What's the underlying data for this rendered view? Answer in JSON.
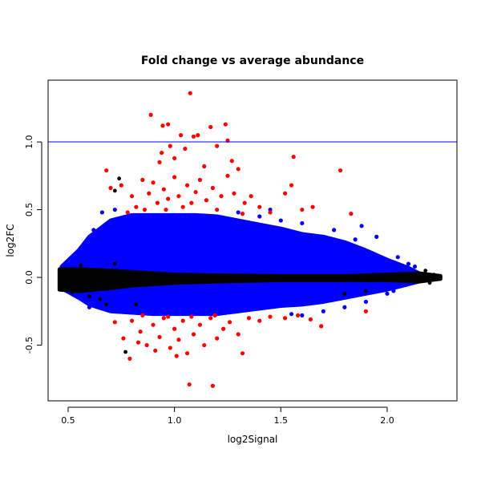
{
  "chart_data": {
    "type": "scatter",
    "title": "Fold change vs average abundance",
    "xlabel": "log2Signal",
    "ylabel": "log2FC",
    "xlim": [
      0.406,
      2.328
    ],
    "ylim": [
      -0.911,
      1.456
    ],
    "xticks": [
      0.5,
      1.0,
      1.5,
      2.0
    ],
    "xtick_labels": [
      "0.5",
      "1.0",
      "1.5",
      "2.0"
    ],
    "yticks": [
      -0.5,
      0.0,
      0.5,
      1.0
    ],
    "ytick_labels": [
      "-0.5",
      "0.0",
      "0.5",
      "1.0"
    ],
    "grid": false,
    "hline": {
      "y": 1.0,
      "color": "#0000ff"
    },
    "colors": {
      "significant": "#ff0000",
      "moderate": "#0000ff",
      "unchanged": "#000000"
    },
    "blue_envelope": [
      [
        0.47,
        0.08,
        -0.08
      ],
      [
        0.55,
        0.2,
        -0.15
      ],
      [
        0.6,
        0.3,
        -0.2
      ],
      [
        0.7,
        0.42,
        -0.25
      ],
      [
        0.8,
        0.46,
        -0.26
      ],
      [
        0.9,
        0.46,
        -0.27
      ],
      [
        1.0,
        0.46,
        -0.27
      ],
      [
        1.1,
        0.46,
        -0.27
      ],
      [
        1.2,
        0.45,
        -0.27
      ],
      [
        1.3,
        0.42,
        -0.25
      ],
      [
        1.4,
        0.39,
        -0.23
      ],
      [
        1.5,
        0.36,
        -0.21
      ],
      [
        1.6,
        0.32,
        -0.2
      ],
      [
        1.7,
        0.3,
        -0.18
      ],
      [
        1.8,
        0.26,
        -0.15
      ],
      [
        1.9,
        0.2,
        -0.12
      ],
      [
        2.0,
        0.13,
        -0.09
      ],
      [
        2.1,
        0.07,
        -0.05
      ],
      [
        2.15,
        0.03,
        -0.03
      ]
    ],
    "black_envelope": [
      [
        0.46,
        0.06,
        -0.09
      ],
      [
        0.55,
        0.06,
        -0.1
      ],
      [
        0.7,
        0.05,
        -0.08
      ],
      [
        0.8,
        0.04,
        -0.06
      ],
      [
        0.9,
        0.03,
        -0.05
      ],
      [
        1.0,
        0.02,
        -0.04
      ],
      [
        1.2,
        0.015,
        -0.03
      ],
      [
        1.5,
        0.01,
        -0.02
      ],
      [
        1.8,
        0.01,
        -0.02
      ],
      [
        2.0,
        0.02,
        -0.02
      ],
      [
        2.15,
        0.03,
        -0.03
      ],
      [
        2.25,
        0.01,
        -0.01
      ]
    ],
    "blue_points": [
      [
        0.62,
        0.35
      ],
      [
        0.66,
        0.48
      ],
      [
        0.72,
        0.5
      ],
      [
        1.4,
        0.45
      ],
      [
        1.45,
        0.5
      ],
      [
        1.5,
        0.42
      ],
      [
        1.6,
        0.4
      ],
      [
        1.75,
        0.35
      ],
      [
        1.88,
        0.38
      ],
      [
        1.95,
        0.3
      ],
      [
        2.05,
        0.15
      ],
      [
        2.1,
        0.1
      ],
      [
        2.13,
        0.08
      ],
      [
        1.9,
        -0.18
      ],
      [
        1.8,
        -0.22
      ],
      [
        1.7,
        -0.25
      ],
      [
        1.6,
        -0.28
      ],
      [
        2.0,
        -0.12
      ],
      [
        0.6,
        -0.22
      ],
      [
        0.58,
        0.25
      ],
      [
        1.3,
        0.48
      ],
      [
        1.55,
        -0.27
      ],
      [
        1.85,
        0.28
      ],
      [
        2.03,
        -0.1
      ]
    ],
    "black_points": [
      [
        0.47,
        -0.03
      ],
      [
        0.49,
        0.05
      ],
      [
        0.52,
        -0.11
      ],
      [
        0.56,
        0.09
      ],
      [
        0.6,
        -0.14
      ],
      [
        0.65,
        -0.16
      ],
      [
        0.68,
        -0.2
      ],
      [
        0.72,
        0.1
      ],
      [
        0.74,
        0.73
      ],
      [
        0.72,
        0.64
      ],
      [
        0.77,
        -0.55
      ],
      [
        0.82,
        -0.2
      ],
      [
        2.18,
        0.05
      ],
      [
        2.2,
        -0.04
      ],
      [
        2.22,
        0.02
      ],
      [
        2.25,
        0.0
      ],
      [
        1.8,
        -0.12
      ],
      [
        1.9,
        -0.1
      ]
    ],
    "red_points": [
      [
        1.074,
        1.36
      ],
      [
        0.889,
        1.2
      ],
      [
        0.945,
        1.12
      ],
      [
        0.97,
        1.13
      ],
      [
        1.03,
        1.05
      ],
      [
        1.17,
        1.11
      ],
      [
        1.24,
        1.13
      ],
      [
        1.25,
        1.01
      ],
      [
        1.11,
        1.05
      ],
      [
        1.09,
        1.04
      ],
      [
        0.94,
        0.92
      ],
      [
        0.98,
        0.97
      ],
      [
        1.05,
        0.95
      ],
      [
        1.2,
        0.97
      ],
      [
        0.93,
        0.85
      ],
      [
        1.0,
        0.88
      ],
      [
        1.14,
        0.82
      ],
      [
        1.27,
        0.86
      ],
      [
        0.68,
        0.79
      ],
      [
        1.56,
        0.89
      ],
      [
        1.78,
        0.79
      ],
      [
        0.75,
        0.68
      ],
      [
        0.7,
        0.66
      ],
      [
        0.8,
        0.6
      ],
      [
        0.85,
        0.72
      ],
      [
        0.88,
        0.62
      ],
      [
        0.9,
        0.7
      ],
      [
        0.92,
        0.55
      ],
      [
        0.95,
        0.65
      ],
      [
        0.97,
        0.58
      ],
      [
        1.0,
        0.74
      ],
      [
        1.02,
        0.6
      ],
      [
        1.06,
        0.68
      ],
      [
        1.08,
        0.55
      ],
      [
        1.1,
        0.63
      ],
      [
        1.12,
        0.72
      ],
      [
        1.15,
        0.57
      ],
      [
        1.18,
        0.66
      ],
      [
        1.22,
        0.6
      ],
      [
        1.25,
        0.75
      ],
      [
        1.28,
        0.62
      ],
      [
        1.3,
        0.8
      ],
      [
        1.33,
        0.55
      ],
      [
        1.36,
        0.6
      ],
      [
        1.4,
        0.52
      ],
      [
        1.45,
        0.48
      ],
      [
        1.52,
        0.62
      ],
      [
        1.55,
        0.68
      ],
      [
        1.6,
        0.5
      ],
      [
        1.65,
        0.52
      ],
      [
        1.83,
        0.47
      ],
      [
        0.82,
        0.52
      ],
      [
        0.86,
        0.5
      ],
      [
        0.96,
        0.5
      ],
      [
        1.04,
        0.52
      ],
      [
        1.2,
        0.5
      ],
      [
        0.78,
        0.48
      ],
      [
        1.32,
        0.47
      ],
      [
        1.07,
        -0.79
      ],
      [
        1.18,
        -0.8
      ],
      [
        0.79,
        -0.6
      ],
      [
        0.91,
        -0.54
      ],
      [
        1.32,
        -0.56
      ],
      [
        1.69,
        -0.36
      ],
      [
        1.9,
        -0.25
      ],
      [
        0.72,
        -0.33
      ],
      [
        0.76,
        -0.45
      ],
      [
        0.8,
        -0.32
      ],
      [
        0.84,
        -0.4
      ],
      [
        0.87,
        -0.5
      ],
      [
        0.9,
        -0.35
      ],
      [
        0.93,
        -0.44
      ],
      [
        0.95,
        -0.3
      ],
      [
        0.98,
        -0.52
      ],
      [
        1.0,
        -0.38
      ],
      [
        1.02,
        -0.46
      ],
      [
        1.04,
        -0.32
      ],
      [
        1.06,
        -0.56
      ],
      [
        1.09,
        -0.42
      ],
      [
        1.12,
        -0.35
      ],
      [
        1.14,
        -0.5
      ],
      [
        1.17,
        -0.3
      ],
      [
        1.2,
        -0.45
      ],
      [
        1.23,
        -0.38
      ],
      [
        1.26,
        -0.33
      ],
      [
        1.3,
        -0.42
      ],
      [
        1.35,
        -0.3
      ],
      [
        1.4,
        -0.32
      ],
      [
        1.45,
        -0.29
      ],
      [
        1.52,
        -0.3
      ],
      [
        1.58,
        -0.28
      ],
      [
        1.64,
        -0.31
      ],
      [
        0.85,
        -0.28
      ],
      [
        0.97,
        -0.29
      ],
      [
        1.08,
        -0.29
      ],
      [
        1.19,
        -0.28
      ],
      [
        0.83,
        -0.48
      ],
      [
        1.01,
        -0.58
      ]
    ]
  }
}
